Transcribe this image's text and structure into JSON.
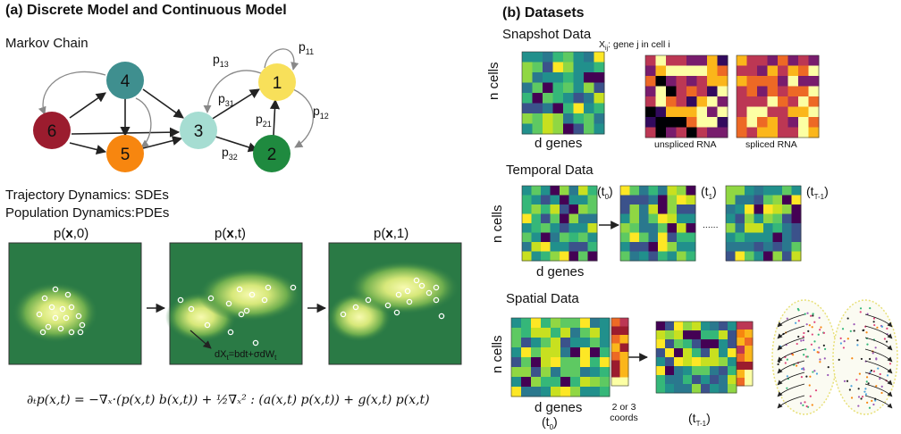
{
  "panel_a": {
    "title": "(a) Discrete Model and Continuous Model",
    "markov_title": "Markov Chain",
    "nodes": [
      {
        "label": "1",
        "color": "#f8e05a"
      },
      {
        "label": "2",
        "color": "#1f8a3f"
      },
      {
        "label": "3",
        "color": "#a6ddd2"
      },
      {
        "label": "4",
        "color": "#3f8f8f"
      },
      {
        "label": "5",
        "color": "#f7860f"
      },
      {
        "label": "6",
        "color": "#9b1c2e"
      }
    ],
    "edge_labels": {
      "p13": {
        "base": "p",
        "sub": "13"
      },
      "p11": {
        "base": "p",
        "sub": "11"
      },
      "p31": {
        "base": "p",
        "sub": "31"
      },
      "p12": {
        "base": "p",
        "sub": "12"
      },
      "p21": {
        "base": "p",
        "sub": "21"
      },
      "p32": {
        "base": "p",
        "sub": "32"
      }
    },
    "traj_text": "Trajectory Dynamics: SDEs",
    "pop_text": "Population Dynamics:PDEs",
    "density_titles": [
      {
        "pre": "p(",
        "bold": "x",
        "post": ",0)"
      },
      {
        "pre": "p(",
        "bold": "x",
        "post": ",t)"
      },
      {
        "pre": "p(",
        "bold": "x",
        "post": ",1)"
      }
    ],
    "sde": {
      "pre": "dX",
      "sub1": "t",
      "mid": "=bdt+σdW",
      "sub2": "t"
    },
    "equation": "∂ₜp(x,t) = −∇ₓ·(p(x,t) b(x,t)) + ½∇ₓ² : (a(x,t) p(x,t)) + g(x,t) p(x,t)"
  },
  "panel_b": {
    "title": "(b) Datasets",
    "snapshot": {
      "title": "Snapshot Data",
      "ylabel": "n cells",
      "xlabel": "d genes",
      "annotation_pre": "X",
      "annotation_sub": "ij",
      "annotation_post": ": gene j in cell i",
      "unspliced": "unspliced RNA",
      "spliced": "spliced RNA"
    },
    "temporal": {
      "title": "Temporal Data",
      "ylabel": "n cells",
      "xlabel": "d genes",
      "t0": {
        "base": "(t",
        "sub": "0",
        "end": ")"
      },
      "t1": {
        "base": "(t",
        "sub": "1",
        "end": ")"
      },
      "tT": {
        "base": "(t",
        "sub": "T-1",
        "end": ")"
      },
      "dots": "......"
    },
    "spatial": {
      "title": "Spatial Data",
      "ylabel": "n cells",
      "xlabel": "d genes",
      "coords": "2 or 3 coords",
      "t0": {
        "base": "(t",
        "sub": "0",
        "end": ")"
      },
      "tT": {
        "base": "(t",
        "sub": "T-1",
        "end": ")"
      }
    }
  },
  "colors": {
    "viridis": [
      "#440154",
      "#3b528b",
      "#21908c",
      "#2a788e",
      "#35b779",
      "#5ec962",
      "#90d743",
      "#c8e020",
      "#fde725"
    ],
    "inferno": [
      "#000004",
      "#320a5e",
      "#781c6d",
      "#bc3754",
      "#ed6925",
      "#fbb61a",
      "#fcffa4"
    ],
    "density_bg": "#2a7a45",
    "density_glow": "#f4f7a0"
  }
}
